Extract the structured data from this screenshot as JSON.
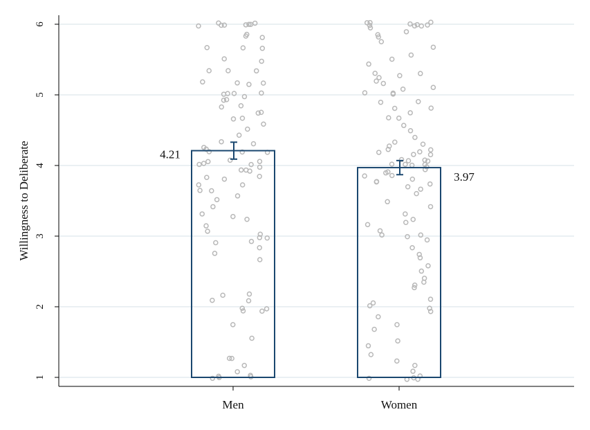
{
  "chart_data": {
    "type": "bar",
    "categories": [
      "Men",
      "Women"
    ],
    "values": [
      4.21,
      3.97
    ],
    "value_labels": [
      "4.21",
      "3.97"
    ],
    "error_bars": [
      [
        4.09,
        4.33
      ],
      [
        3.87,
        4.07
      ]
    ],
    "ylabel": "Willingness to Deliberate",
    "xlabel": "",
    "ylim": [
      1,
      6
    ],
    "yticks": [
      "1",
      "2",
      "3",
      "4",
      "5",
      "6"
    ],
    "grid": true,
    "legend": "none",
    "colors": {
      "bar_outline": "#1a476f",
      "points": "#b8b8b8",
      "grid": "#eaf0f3"
    },
    "scatter_overlay": [
      {
        "category": "Men",
        "y": [
          6,
          6,
          6,
          6,
          6,
          6,
          6,
          6,
          5.83,
          5.83,
          5.83,
          5.67,
          5.67,
          5.67,
          5.5,
          5.5,
          5.33,
          5.33,
          5.33,
          5.17,
          5.17,
          5.17,
          5.17,
          5,
          5,
          5,
          5,
          5,
          4.92,
          4.92,
          4.83,
          4.83,
          4.75,
          4.75,
          4.67,
          4.67,
          4.58,
          4.5,
          4.42,
          4.33,
          4.33,
          4.25,
          4.25,
          4.17,
          4.17,
          4.17,
          4.08,
          4.08,
          4.08,
          4,
          4,
          4,
          4,
          3.92,
          3.92,
          3.92,
          3.83,
          3.83,
          3.83,
          3.75,
          3.75,
          3.67,
          3.67,
          3.58,
          3.5,
          3.42,
          3.33,
          3.25,
          3.25,
          3.17,
          3.08,
          3,
          3,
          3,
          2.92,
          2.92,
          2.83,
          2.75,
          2.67,
          2.17,
          2.17,
          2.08,
          2.08,
          2,
          2,
          1.92,
          1.92,
          1.75,
          1.58,
          1.25,
          1.25,
          1.17,
          1.08,
          1,
          1,
          1,
          1,
          1
        ]
      },
      {
        "category": "Women",
        "y": [
          6,
          6,
          6,
          6,
          6,
          6,
          6,
          6,
          6,
          5.92,
          5.92,
          5.83,
          5.83,
          5.75,
          5.67,
          5.58,
          5.5,
          5.42,
          5.33,
          5.33,
          5.25,
          5.25,
          5.17,
          5.17,
          5.08,
          5.08,
          5,
          5,
          5,
          4.92,
          4.92,
          4.83,
          4.83,
          4.75,
          4.67,
          4.67,
          4.58,
          4.5,
          4.42,
          4.33,
          4.33,
          4.25,
          4.25,
          4.25,
          4.17,
          4.17,
          4.17,
          4.17,
          4.08,
          4.08,
          4.08,
          4.08,
          4,
          4,
          4,
          4,
          4,
          3.92,
          3.92,
          3.92,
          3.83,
          3.83,
          3.83,
          3.75,
          3.75,
          3.75,
          3.67,
          3.67,
          3.58,
          3.5,
          3.42,
          3.33,
          3.25,
          3.17,
          3.17,
          3.08,
          3,
          3,
          3,
          2.92,
          2.83,
          2.75,
          2.67,
          2.58,
          2.5,
          2.42,
          2.33,
          2.33,
          2.25,
          2.08,
          2.08,
          2,
          2,
          1.92,
          1.83,
          1.75,
          1.67,
          1.5,
          1.42,
          1.33,
          1.25,
          1.17,
          1.08,
          1,
          1,
          1,
          1,
          1
        ]
      }
    ]
  }
}
